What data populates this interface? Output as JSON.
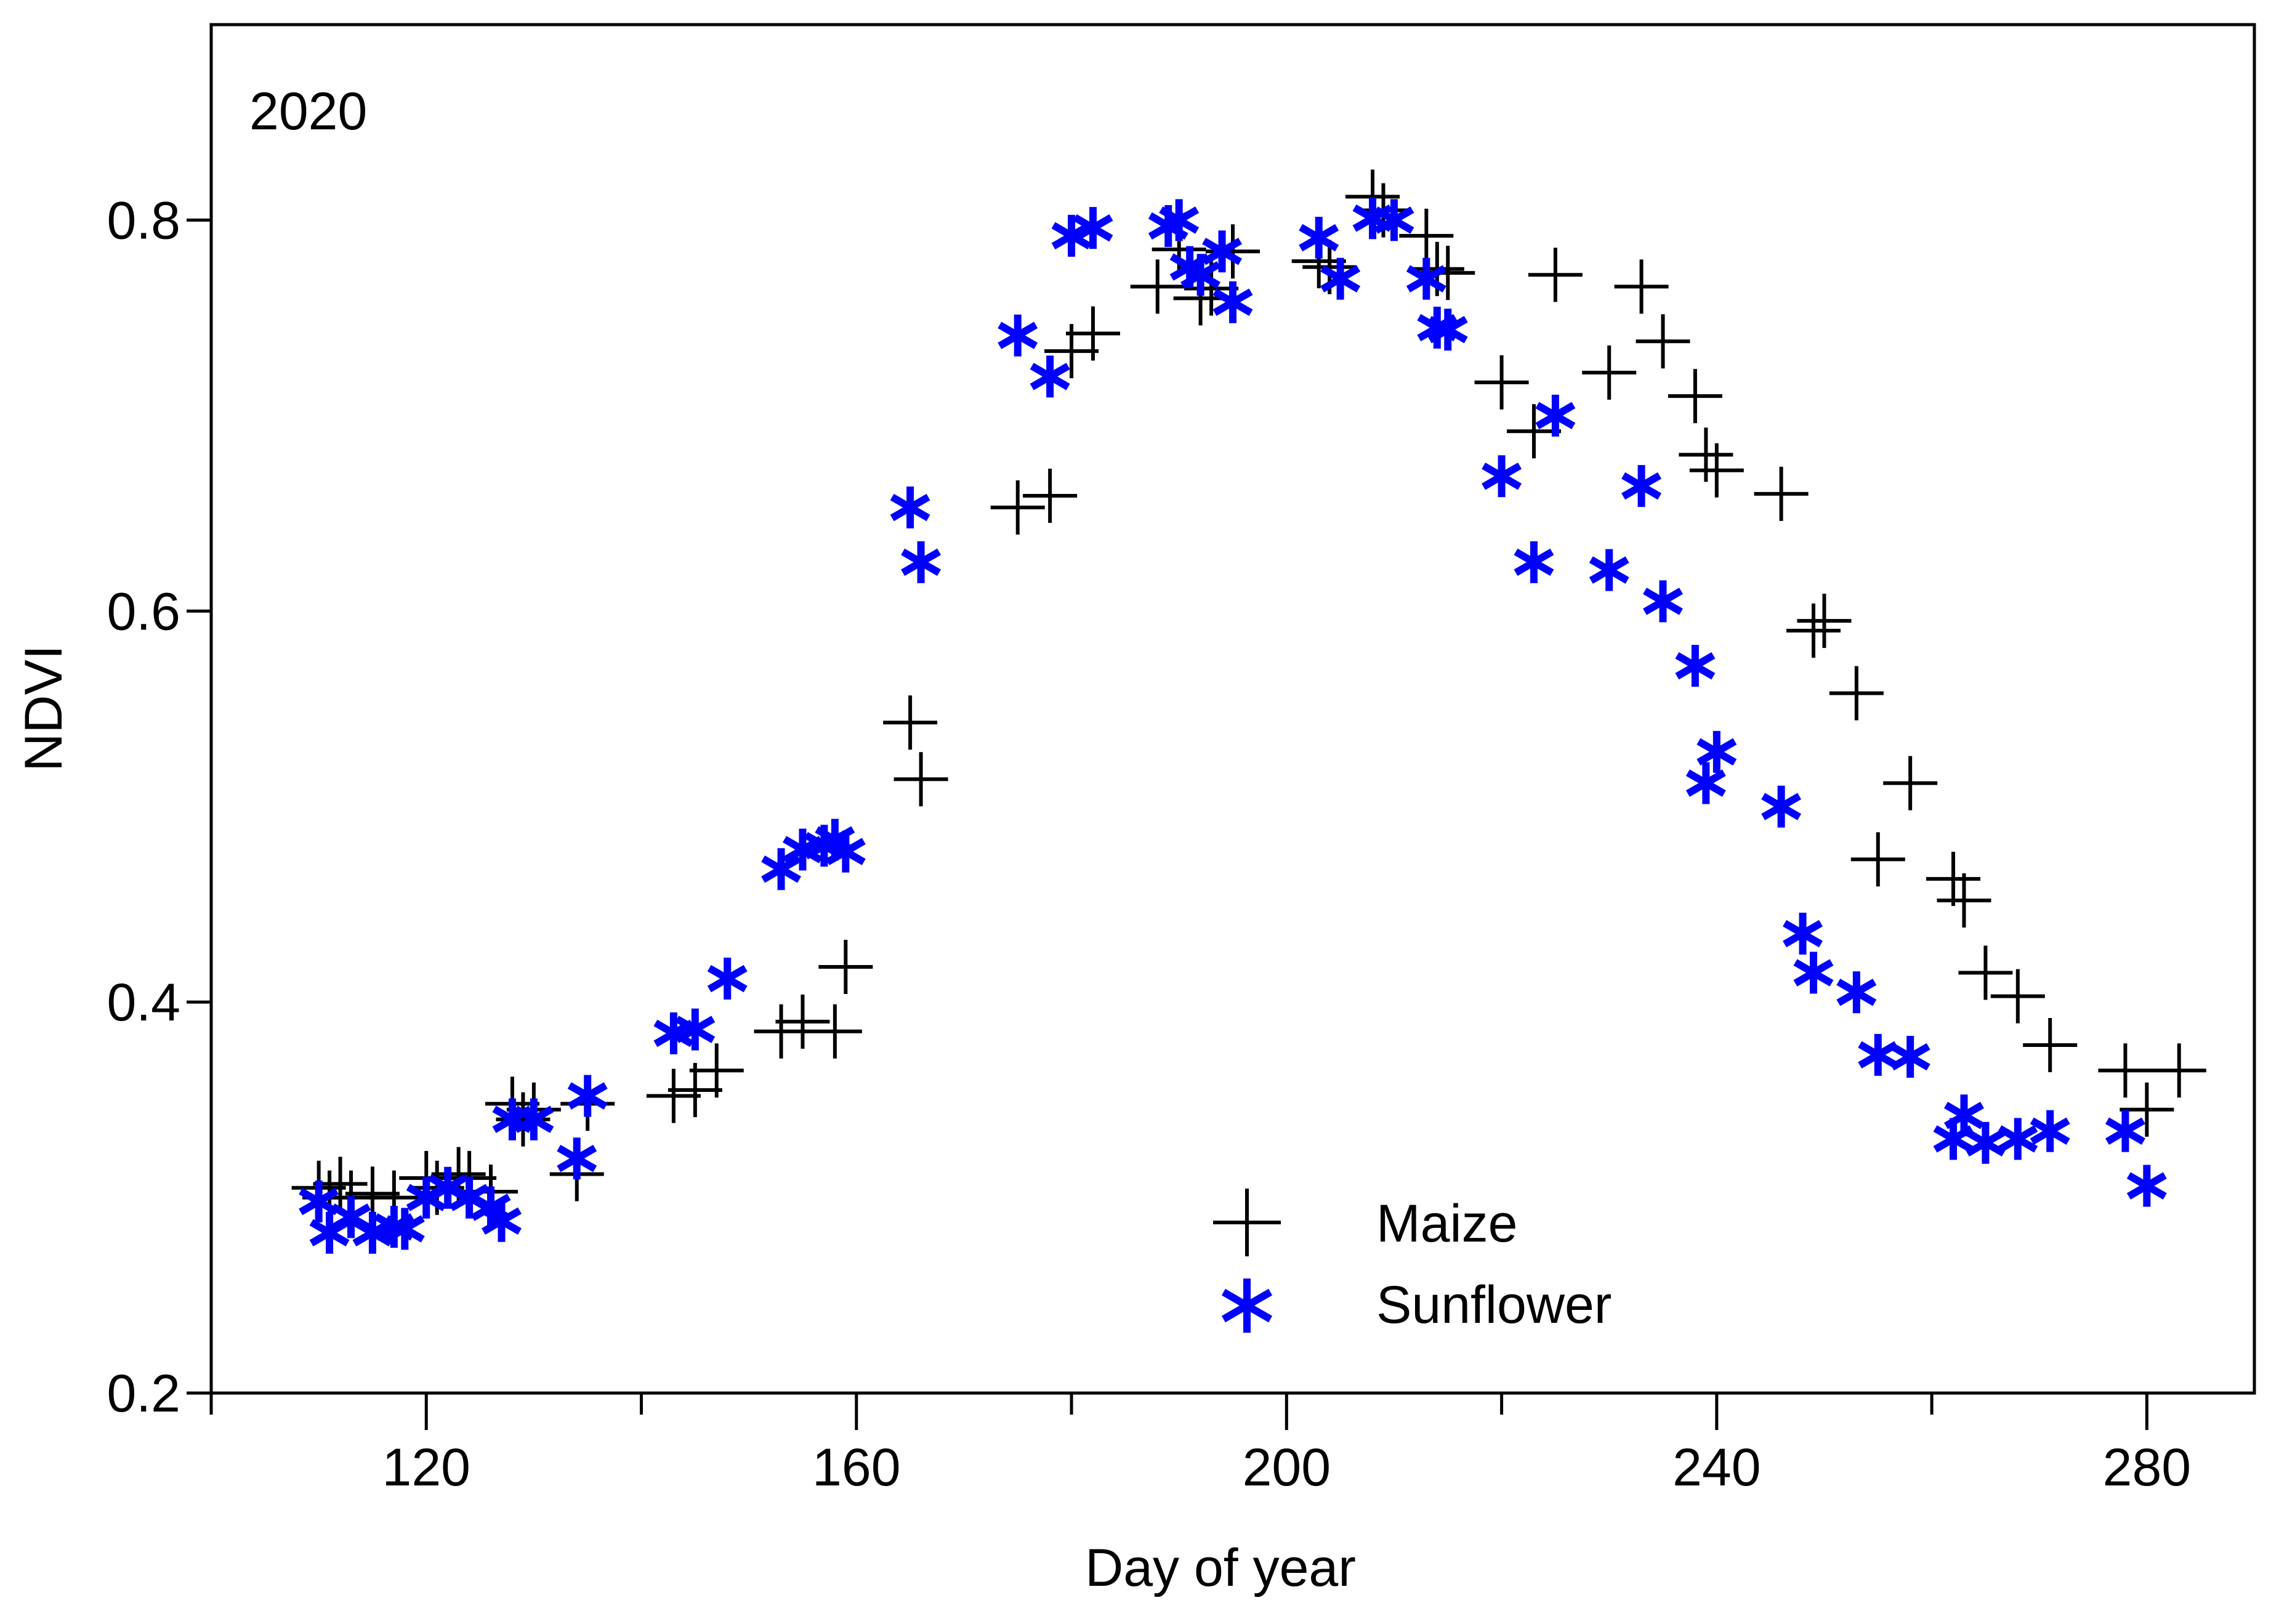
{
  "chart_data": {
    "type": "scatter",
    "title": "",
    "annotation": "2020",
    "xlabel": "Day of year",
    "ylabel": "NDVI",
    "xlim": [
      100,
      290
    ],
    "ylim": [
      0.2,
      0.9
    ],
    "xticks_major": [
      120,
      160,
      200,
      240,
      280
    ],
    "xtick_labels": [
      "120",
      "160",
      "200",
      "240",
      "280"
    ],
    "xticks_minor": [
      100,
      140,
      180,
      220,
      260
    ],
    "yticks": [
      0.2,
      0.4,
      0.6,
      0.8
    ],
    "ytick_labels": [
      "0.2",
      "0.4",
      "0.6",
      "0.8"
    ],
    "grid": false,
    "legend_position": "bottom-center",
    "series": [
      {
        "name": "Maize",
        "marker": "plus",
        "color": "#000000",
        "x": [
          110,
          111,
          112,
          113,
          115,
          117,
          120,
          121,
          123,
          124,
          126,
          128,
          129,
          130,
          134,
          135,
          143,
          145,
          147,
          153,
          155,
          158,
          159,
          165,
          166,
          175,
          178,
          180,
          182,
          188,
          190,
          192,
          193,
          195,
          203,
          204,
          208,
          209,
          213,
          214,
          215,
          220,
          223,
          225,
          230,
          233,
          235,
          238,
          239,
          240,
          246,
          249,
          250,
          253,
          255,
          258,
          262,
          263,
          265,
          268,
          271,
          278,
          280,
          283
        ],
        "y": [
          0.305,
          0.3,
          0.307,
          0.3,
          0.302,
          0.3,
          0.31,
          0.305,
          0.312,
          0.31,
          0.303,
          0.348,
          0.34,
          0.345,
          0.312,
          0.348,
          0.352,
          0.355,
          0.365,
          0.385,
          0.39,
          0.385,
          0.418,
          0.543,
          0.514,
          0.653,
          0.659,
          0.733,
          0.742,
          0.766,
          0.785,
          0.76,
          0.765,
          0.784,
          0.779,
          0.776,
          0.812,
          0.805,
          0.792,
          0.775,
          0.773,
          0.717,
          0.692,
          0.772,
          0.722,
          0.766,
          0.738,
          0.71,
          0.68,
          0.672,
          0.66,
          0.59,
          0.595,
          0.558,
          0.473,
          0.512,
          0.463,
          0.452,
          0.415,
          0.403,
          0.378,
          0.365,
          0.345,
          0.365
        ]
      },
      {
        "name": "Sunflower",
        "marker": "asterisk",
        "color": "#0000ff",
        "x": [
          110,
          111,
          113,
          115,
          117,
          118,
          120,
          122,
          124,
          126,
          127,
          128,
          130,
          134,
          135,
          143,
          145,
          148,
          153,
          155,
          157,
          158,
          159,
          165,
          166,
          175,
          178,
          180,
          182,
          189,
          190,
          191,
          192,
          194,
          195,
          203,
          205,
          208,
          210,
          213,
          214,
          215,
          220,
          223,
          225,
          230,
          233,
          235,
          238,
          239,
          240,
          246,
          248,
          249,
          253,
          255,
          258,
          262,
          263,
          265,
          268,
          271,
          278,
          280
        ],
        "y": [
          0.298,
          0.282,
          0.29,
          0.282,
          0.285,
          0.284,
          0.3,
          0.305,
          0.3,
          0.295,
          0.288,
          0.34,
          0.34,
          0.32,
          0.352,
          0.384,
          0.386,
          0.412,
          0.468,
          0.478,
          0.48,
          0.483,
          0.477,
          0.653,
          0.625,
          0.741,
          0.72,
          0.792,
          0.796,
          0.797,
          0.8,
          0.776,
          0.772,
          0.784,
          0.758,
          0.791,
          0.77,
          0.801,
          0.8,
          0.77,
          0.745,
          0.744,
          0.669,
          0.625,
          0.7,
          0.621,
          0.664,
          0.605,
          0.572,
          0.512,
          0.528,
          0.5,
          0.435,
          0.415,
          0.405,
          0.373,
          0.372,
          0.33,
          0.342,
          0.328,
          0.33,
          0.334,
          0.334,
          0.306
        ]
      }
    ]
  }
}
